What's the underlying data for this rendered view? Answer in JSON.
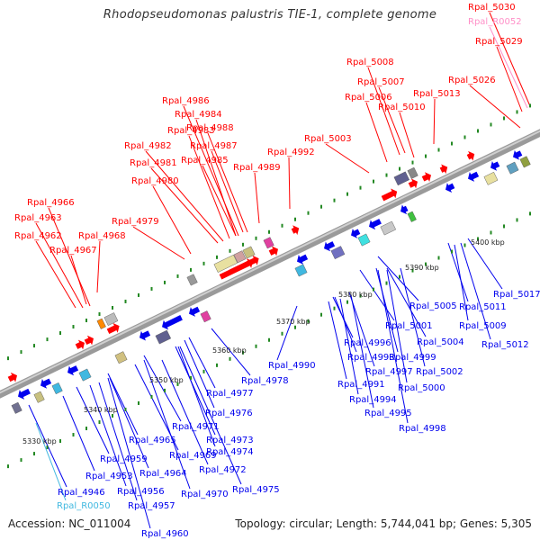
{
  "title": "Rhodopseudomonas palustris TIE-1, complete genome",
  "accession": "Accession: NC_011004",
  "summary": "Topology: circular; Length: 5,744,041 bp; Genes: 5,305",
  "colors": {
    "cds_forward": "#ff0000",
    "cds_reverse": "#0000ee",
    "rna": "#40b8e0",
    "pseudo": "#ff90c8",
    "backbone": "#888888",
    "tick": "#228822"
  },
  "scale_labels": [
    "5330 kbp",
    "5340 kbp",
    "5350 kbp",
    "5360 kbp",
    "5370 kbp",
    "5380 kbp",
    "5390 kbp",
    "5400 kbp"
  ],
  "top_labels": [
    {
      "text": "Rpal_5030",
      "color": "red"
    },
    {
      "text": "Rpal_R0052",
      "color": "pink"
    },
    {
      "text": "Rpal_5029",
      "color": "red"
    },
    {
      "text": "Rpal_5008",
      "color": "red"
    },
    {
      "text": "Rpal_5026",
      "color": "red"
    },
    {
      "text": "Rpal_5007",
      "color": "red"
    },
    {
      "text": "Rpal_5006",
      "color": "red"
    },
    {
      "text": "Rpal_5013",
      "color": "red"
    },
    {
      "text": "Rpal_5010",
      "color": "red"
    },
    {
      "text": "Rpal_4986",
      "color": "red"
    },
    {
      "text": "Rpal_4984",
      "color": "red"
    },
    {
      "text": "Rpal_4983",
      "color": "red"
    },
    {
      "text": "Rpal_4988",
      "color": "red"
    },
    {
      "text": "Rpal_5003",
      "color": "red"
    },
    {
      "text": "Rpal_4982",
      "color": "red"
    },
    {
      "text": "Rpal_4987",
      "color": "red"
    },
    {
      "text": "Rpal_4981",
      "color": "red"
    },
    {
      "text": "Rpal_4985",
      "color": "red"
    },
    {
      "text": "Rpal_4992",
      "color": "red"
    },
    {
      "text": "Rpal_4989",
      "color": "red"
    },
    {
      "text": "Rpal_4980",
      "color": "red"
    },
    {
      "text": "Rpal_4966",
      "color": "red"
    },
    {
      "text": "Rpal_4963",
      "color": "red"
    },
    {
      "text": "Rpal_4979",
      "color": "red"
    },
    {
      "text": "Rpal_4962",
      "color": "red"
    },
    {
      "text": "Rpal_4968",
      "color": "red"
    },
    {
      "text": "Rpal_4967",
      "color": "red"
    }
  ],
  "bottom_labels": [
    {
      "text": "Rpal_5017",
      "color": "blue"
    },
    {
      "text": "Rpal_5005",
      "color": "blue"
    },
    {
      "text": "Rpal_5011",
      "color": "blue"
    },
    {
      "text": "Rpal_5001",
      "color": "blue"
    },
    {
      "text": "Rpal_5009",
      "color": "blue"
    },
    {
      "text": "Rpal_5004",
      "color": "blue"
    },
    {
      "text": "Rpal_5012",
      "color": "blue"
    },
    {
      "text": "Rpal_4996",
      "color": "blue"
    },
    {
      "text": "Rpal_4999",
      "color": "blue"
    },
    {
      "text": "Rpal_4990",
      "color": "blue"
    },
    {
      "text": "Rpal_4993",
      "color": "blue"
    },
    {
      "text": "Rpal_4997",
      "color": "blue"
    },
    {
      "text": "Rpal_5002",
      "color": "blue"
    },
    {
      "text": "Rpal_4978",
      "color": "blue"
    },
    {
      "text": "Rpal_4991",
      "color": "blue"
    },
    {
      "text": "Rpal_5000",
      "color": "blue"
    },
    {
      "text": "Rpal_4994",
      "color": "blue"
    },
    {
      "text": "Rpal_4977",
      "color": "blue"
    },
    {
      "text": "Rpal_4995",
      "color": "blue"
    },
    {
      "text": "Rpal_4976",
      "color": "blue"
    },
    {
      "text": "Rpal_4998",
      "color": "blue"
    },
    {
      "text": "Rpal_4971",
      "color": "blue"
    },
    {
      "text": "Rpal_4965",
      "color": "blue"
    },
    {
      "text": "Rpal_4973",
      "color": "blue"
    },
    {
      "text": "Rpal_4969",
      "color": "blue"
    },
    {
      "text": "Rpal_4974",
      "color": "blue"
    },
    {
      "text": "Rpal_4959",
      "color": "blue"
    },
    {
      "text": "Rpal_4964",
      "color": "blue"
    },
    {
      "text": "Rpal_4972",
      "color": "blue"
    },
    {
      "text": "Rpal_4953",
      "color": "blue"
    },
    {
      "text": "Rpal_4975",
      "color": "blue"
    },
    {
      "text": "Rpal_4946",
      "color": "blue"
    },
    {
      "text": "Rpal_4956",
      "color": "blue"
    },
    {
      "text": "Rpal_4970",
      "color": "blue"
    },
    {
      "text": "Rpal_R0050",
      "color": "cyan"
    },
    {
      "text": "Rpal_4957",
      "color": "blue"
    },
    {
      "text": "Rpal_4960",
      "color": "blue"
    }
  ]
}
